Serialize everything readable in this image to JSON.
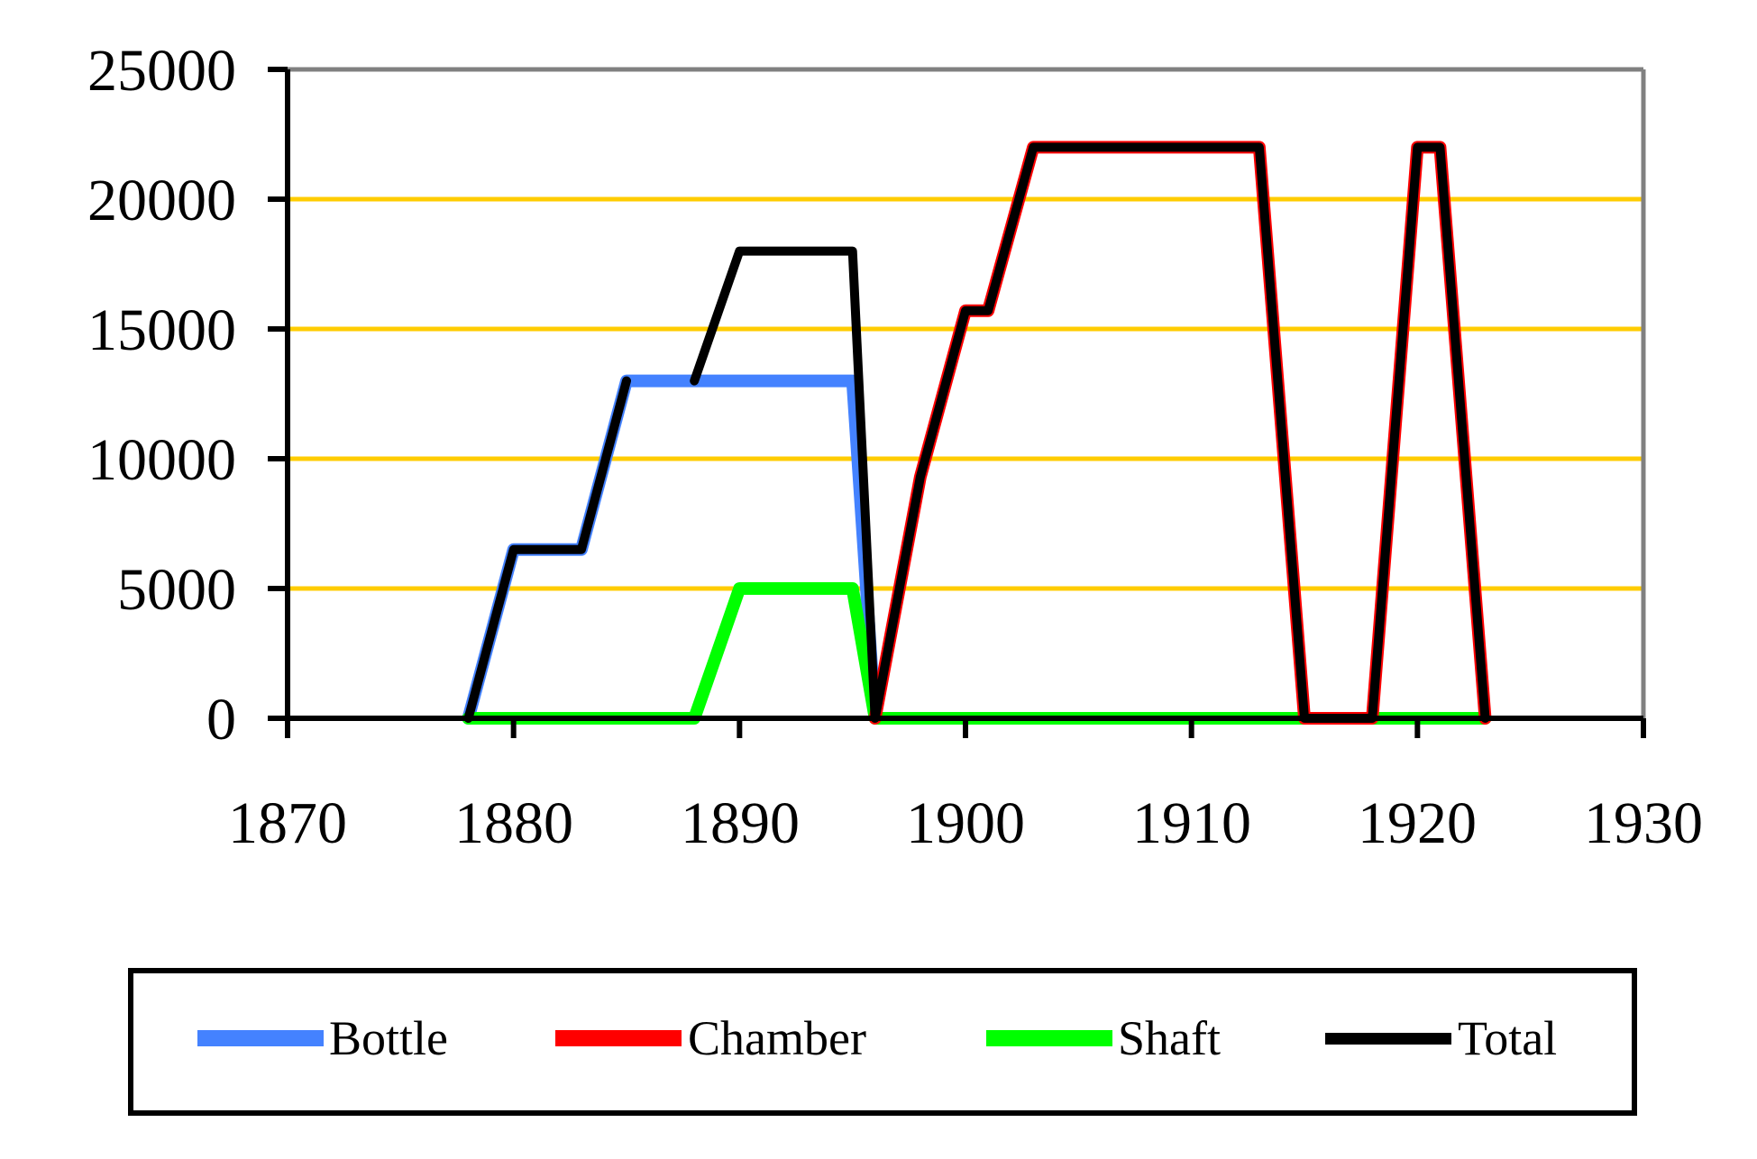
{
  "chart_data": {
    "type": "line",
    "title": "",
    "xlabel": "",
    "ylabel": "",
    "xlim": [
      1870,
      1930
    ],
    "ylim": [
      0,
      25000
    ],
    "x_ticks": [
      1870,
      1880,
      1890,
      1900,
      1910,
      1920,
      1930
    ],
    "y_ticks": [
      0,
      5000,
      10000,
      15000,
      20000,
      25000
    ],
    "grid": {
      "horizontal": true,
      "vertical": false,
      "color": "#FFCC00"
    },
    "legend_position": "bottom",
    "series": [
      {
        "name": "Bottle",
        "color": "#4482FF",
        "points": [
          [
            1878,
            0
          ],
          [
            1880,
            6500
          ],
          [
            1883,
            6500
          ],
          [
            1885,
            13000
          ],
          [
            1895,
            13000
          ],
          [
            1896,
            0
          ]
        ]
      },
      {
        "name": "Chamber",
        "color": "#FF0000",
        "points": [
          [
            1896,
            0
          ],
          [
            1898,
            9300
          ],
          [
            1900,
            15700
          ],
          [
            1901,
            15700
          ],
          [
            1903,
            22000
          ],
          [
            1913,
            22000
          ],
          [
            1915,
            0
          ],
          [
            1918,
            0
          ],
          [
            1920,
            22000
          ],
          [
            1921,
            22000
          ],
          [
            1923,
            0
          ]
        ]
      },
      {
        "name": "Shaft",
        "color": "#00FF00",
        "points": [
          [
            1878,
            0
          ],
          [
            1888,
            0
          ],
          [
            1889,
            2500
          ],
          [
            1890,
            5000
          ],
          [
            1895,
            5000
          ],
          [
            1896,
            0
          ],
          [
            1923,
            0
          ]
        ]
      },
      {
        "name": "Total",
        "color": "#000000",
        "segments": [
          [
            [
              1878,
              0
            ],
            [
              1880,
              6500
            ],
            [
              1883,
              6500
            ],
            [
              1885,
              13000
            ]
          ],
          [
            [
              1888,
              13000
            ],
            [
              1890,
              18000
            ],
            [
              1895,
              18000
            ],
            [
              1896,
              0
            ],
            [
              1898,
              9300
            ],
            [
              1900,
              15700
            ],
            [
              1901,
              15700
            ],
            [
              1903,
              22000
            ],
            [
              1913,
              22000
            ],
            [
              1915,
              0
            ],
            [
              1918,
              0
            ],
            [
              1920,
              22000
            ],
            [
              1921,
              22000
            ],
            [
              1923,
              0
            ]
          ]
        ]
      }
    ]
  },
  "legend": {
    "items": [
      {
        "label": "Bottle",
        "color": "#4482FF"
      },
      {
        "label": "Chamber",
        "color": "#FF0000"
      },
      {
        "label": "Shaft",
        "color": "#00FF00"
      },
      {
        "label": "Total",
        "color": "#000000"
      }
    ]
  },
  "axes": {
    "x_labels": [
      "1870",
      "1880",
      "1890",
      "1900",
      "1910",
      "1920",
      "1930"
    ],
    "y_labels": [
      "0",
      "5000",
      "10000",
      "15000",
      "20000",
      "25000"
    ]
  }
}
